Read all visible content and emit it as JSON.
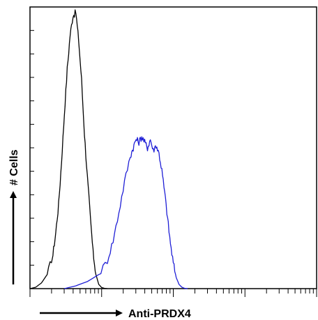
{
  "chart_data": {
    "type": "line",
    "title": "",
    "xlabel": "Anti-PRDX4",
    "ylabel": "# Cells",
    "x_scale": "log",
    "xlim": [
      0,
      1
    ],
    "ylim": [
      0,
      1
    ],
    "grid": false,
    "legend": "none",
    "series": [
      {
        "color": "#000000",
        "x": [
          0.0,
          0.02,
          0.04,
          0.06,
          0.08,
          0.09,
          0.1,
          0.11,
          0.12,
          0.13,
          0.14,
          0.15,
          0.16,
          0.17,
          0.18,
          0.19,
          0.2,
          0.21,
          0.22,
          0.23,
          0.24,
          0.25,
          0.26,
          0.27
        ],
        "y": [
          0.0,
          0.005,
          0.02,
          0.05,
          0.12,
          0.2,
          0.3,
          0.45,
          0.62,
          0.78,
          0.9,
          0.97,
          0.98,
          0.88,
          0.74,
          0.55,
          0.4,
          0.26,
          0.13,
          0.05,
          0.015,
          0.004,
          0.001,
          0.0
        ]
      },
      {
        "color": "#1f1fd6",
        "x": [
          0.12,
          0.16,
          0.2,
          0.24,
          0.27,
          0.29,
          0.31,
          0.33,
          0.35,
          0.36,
          0.37,
          0.38,
          0.39,
          0.4,
          0.41,
          0.42,
          0.43,
          0.44,
          0.45,
          0.46,
          0.47,
          0.48,
          0.49,
          0.5,
          0.51,
          0.52,
          0.53,
          0.54,
          0.55
        ],
        "y": [
          0.0,
          0.01,
          0.025,
          0.05,
          0.1,
          0.17,
          0.27,
          0.38,
          0.47,
          0.5,
          0.53,
          0.52,
          0.54,
          0.52,
          0.5,
          0.53,
          0.49,
          0.51,
          0.48,
          0.42,
          0.34,
          0.25,
          0.16,
          0.09,
          0.04,
          0.015,
          0.005,
          0.001,
          0.0
        ]
      }
    ]
  }
}
